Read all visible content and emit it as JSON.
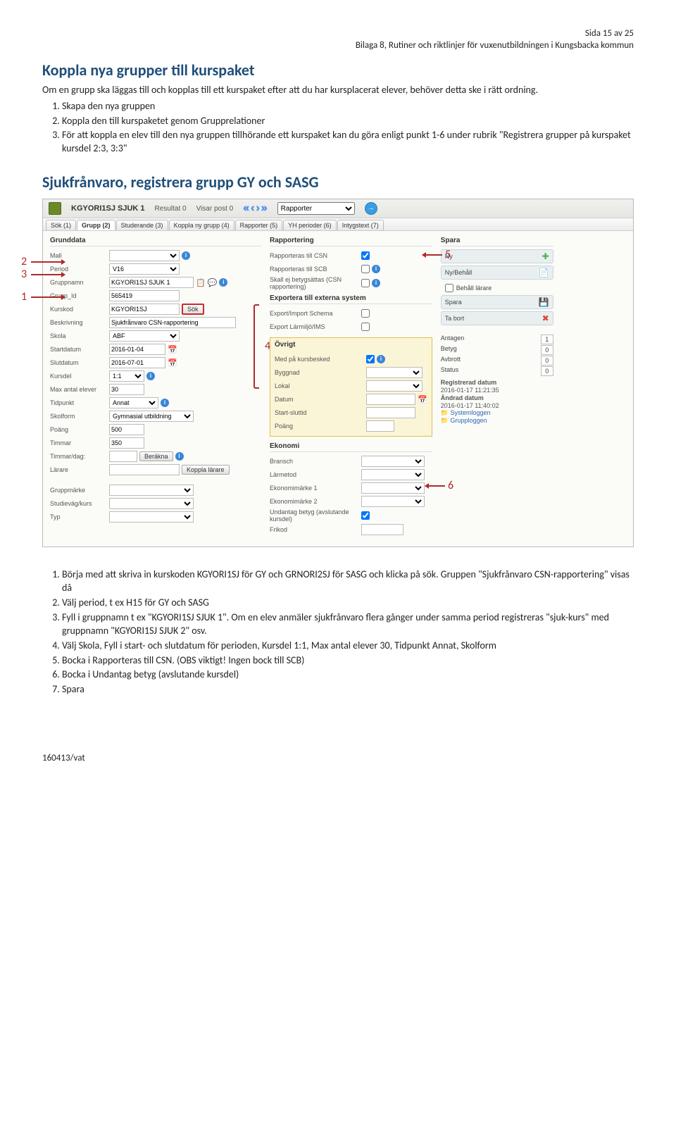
{
  "header": {
    "page": "Sida 15 av 25",
    "doc": "Bilaga 8, Rutiner och riktlinjer för vuxenutbildningen i Kungsbacka kommun"
  },
  "h1a": "Koppla nya grupper till kurspaket",
  "intro": "Om en grupp ska läggas till och kopplas till ett kurspaket efter att du har kursplacerat elever, behöver detta ske i rätt ordning.",
  "list1": [
    "Skapa den nya gruppen",
    "Koppla den till kurspaketet genom Grupprelationer",
    "För att koppla en elev till den nya gruppen tillhörande ett kurspaket kan du göra enligt punkt 1-6 under rubrik \"Registrera grupper på kurspaket kursdel 2:3, 3:3\""
  ],
  "h1b": "Sjukfrånvaro, registrera grupp GY och SASG",
  "ss": {
    "title": "KGYORI1SJ SJUK 1",
    "resultat": "Resultat 0",
    "visar": "Visar post 0",
    "rapporter_sel": "Rapporter",
    "tabs": [
      "Sök (1)",
      "Grupp (2)",
      "Studerande (3)",
      "Koppla ny grupp (4)",
      "Rapporter (5)",
      "YH perioder (6)",
      "Intygstext (7)"
    ],
    "grunddata": {
      "h": "Grunddata",
      "mall_l": "Mall",
      "period_l": "Period",
      "period_v": "V16",
      "gruppnamn_l": "Gruppnamn",
      "gruppnamn_v": "KGYORI1SJ SJUK 1",
      "gruppid_l": "Grupp_Id",
      "gruppid_v": "565419",
      "kurskod_l": "Kurskod",
      "kurskod_v": "KGYORI1SJ",
      "sok_btn": "Sök",
      "beskr_l": "Beskrivning",
      "beskr_v": "Sjukfrånvaro CSN-rapportering",
      "skola_l": "Skola",
      "skola_v": "ABF",
      "start_l": "Startdatum",
      "start_v": "2016-01-04",
      "slut_l": "Slutdatum",
      "slut_v": "2016-07-01",
      "kursdel_l": "Kursdel",
      "kursdel_v": "1:1",
      "max_l": "Max antal elever",
      "max_v": "30",
      "tidp_l": "Tidpunkt",
      "tidp_v": "Annat",
      "skolf_l": "Skolform",
      "skolf_v": "Gymnasial utbildning",
      "poang_l": "Poäng",
      "poang_v": "500",
      "timmar_l": "Timmar",
      "timmar_v": "350",
      "timdag_l": "Timmar/dag:",
      "berakna": "Beräkna",
      "larare_l": "Lärare",
      "koppla_larare": "Koppla lärare",
      "grpm_l": "Gruppmärke",
      "studie_l": "Studieväg/kurs",
      "typ_l": "Typ"
    },
    "rapp": {
      "h": "Rapportering",
      "csn_l": "Rapporteras till CSN",
      "scb_l": "Rapporteras till SCB",
      "skall_l": "Skall ej betygsättas (CSN rapportering)",
      "ext_h": "Exportera till externa system",
      "exp1": "Export/Import Schema",
      "exp2": "Export Lärmiljö/IMS",
      "ov_h": "Övrigt",
      "med_l": "Med på kursbesked",
      "byg_l": "Byggnad",
      "lok_l": "Lokal",
      "dat_l": "Datum",
      "ssl_l": "Start-sluttid",
      "poang_l": "Poäng",
      "eko_h": "Ekonomi",
      "bransch_l": "Bransch",
      "larm_l": "Lärmetod",
      "ekm1_l": "Ekonomimärke 1",
      "ekm2_l": "Ekonomimärke 2",
      "und_l": "Undantag betyg (avslutande kursdel)",
      "fri_l": "Frikod"
    },
    "spara": {
      "h": "Spara",
      "ny": "Ny",
      "nybeh": "Ny/Behåll",
      "behall_chk": "Behåll lärare",
      "spara": "Spara",
      "tabort": "Ta bort",
      "ant_l": "Antagen",
      "ant_v": "1",
      "bet_l": "Betyg",
      "bet_v": "0",
      "avb_l": "Avbrott",
      "avb_v": "0",
      "sta_l": "Status",
      "sta_v": "0",
      "reg_l": "Registrerad datum",
      "reg_v": "2016-01-17 11:21:35",
      "and_l": "Ändrad datum",
      "and_v": "2016-01-17 11:40:02",
      "sys_l": "Systemloggen",
      "grp_l": "Grupploggen"
    }
  },
  "annot": {
    "n1": "1",
    "n2": "2",
    "n3": "3",
    "n4": "4",
    "n5": "5",
    "n6": "6"
  },
  "list2": [
    "Börja med att skriva in kurskoden KGYORI1SJ för GY och GRNORI2SJ för SASG och klicka på sök. Gruppen \"Sjukfrånvaro CSN-rapportering\" visas då",
    "Välj period, t ex H15 för GY och SASG",
    "Fyll i gruppnamn t ex \"KGYORI1SJ SJUK 1\". Om en elev anmäler sjukfrånvaro flera gånger under samma period registreras \"sjuk-kurs\" med gruppnamn \"KGYORI1SJ SJUK 2\" osv.",
    "Välj Skola, Fyll i start- och slutdatum för perioden, Kursdel 1:1, Max antal elever 30, Tidpunkt Annat, Skolform",
    "Bocka i Rapporteras till CSN. (OBS viktigt! Ingen bock till SCB)",
    "Bocka i Undantag betyg (avslutande kursdel)",
    "Spara"
  ],
  "footer": "160413/vat"
}
